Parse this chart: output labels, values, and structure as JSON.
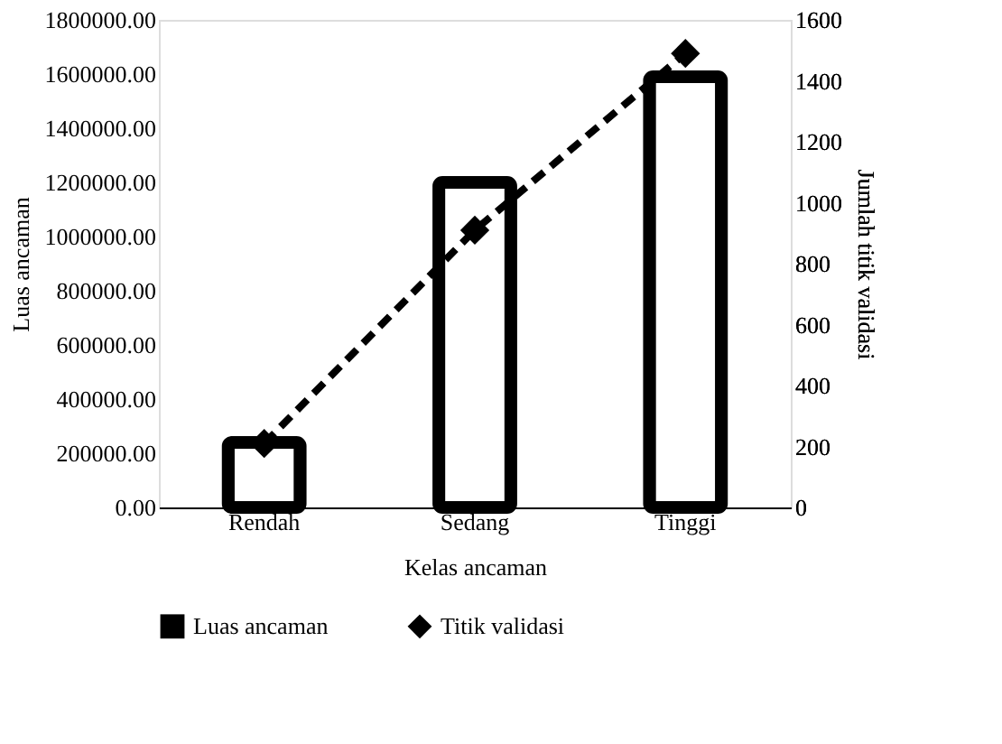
{
  "chart_data": {
    "type": "bar",
    "xlabel": "Kelas ancaman",
    "ylabel": "Luas ancaman",
    "y2label": "Jumlah titik validasi",
    "categories": [
      "Rendah",
      "Sedang",
      "Tinggi"
    ],
    "series": [
      {
        "name": "Luas ancaman",
        "color": "#000000",
        "values": [
          240000,
          1200000,
          1590000
        ]
      },
      {
        "name": "Titik validasi",
        "type": "line",
        "axis": "y2",
        "color": "#000000",
        "values": [
          210,
          910,
          1490
        ],
        "marker": "diamond",
        "line_style": "dashed"
      }
    ],
    "ylim": [
      0,
      1800000
    ],
    "yticks": [
      {
        "value": 0,
        "label": "0.00"
      },
      {
        "value": 200000,
        "label": "200000.00"
      },
      {
        "value": 400000,
        "label": "400000.00"
      },
      {
        "value": 600000,
        "label": "600000.00"
      },
      {
        "value": 800000,
        "label": "800000.00"
      },
      {
        "value": 1000000,
        "label": "1000000.00"
      },
      {
        "value": 1200000,
        "label": "1200000.00"
      },
      {
        "value": 1400000,
        "label": "1400000.00"
      },
      {
        "value": 1600000,
        "label": "1600000.00"
      },
      {
        "value": 1800000,
        "label": "1800000.00"
      }
    ],
    "y2lim": [
      0,
      1600
    ],
    "y2ticks": [
      0,
      200,
      400,
      600,
      800,
      1000,
      1200,
      1400,
      1600
    ],
    "grid": false,
    "legend": "bottom"
  }
}
